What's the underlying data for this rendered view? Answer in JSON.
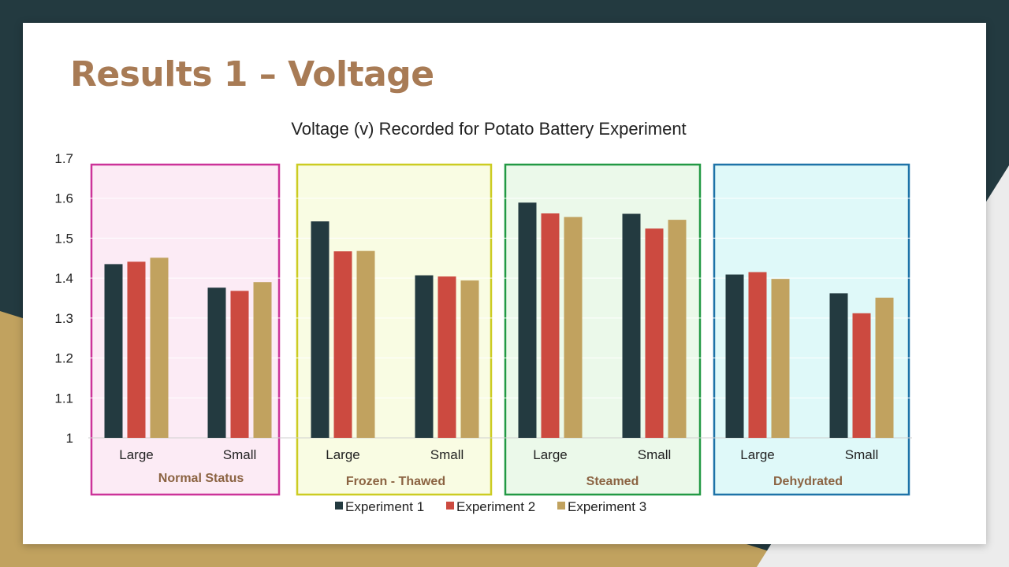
{
  "slide": {
    "title": "Results 1 – Voltage"
  },
  "colors": {
    "background_dark": "#233a40",
    "background_gold": "#c1a25f",
    "background_light": "#ececec",
    "slide": "#ffffff",
    "title": "#a87b55",
    "group_label": "#8b6342"
  },
  "chart_data": {
    "type": "bar",
    "title": "Voltage (v) Recorded for Potato Battery Experiment",
    "xlabel": "",
    "ylabel": "",
    "ylim": [
      1,
      1.7
    ],
    "yticks": [
      1,
      1.1,
      1.2,
      1.3,
      1.4,
      1.5,
      1.6,
      1.7
    ],
    "ytick_labels": [
      "1",
      "1.1",
      "1.2",
      "1.3",
      "1.4",
      "1.5",
      "1.6",
      "1.7"
    ],
    "grid": true,
    "legend_position": "bottom",
    "groups": [
      {
        "label": "Normal Status",
        "border": "#cc3399",
        "fill": "#fcebf5"
      },
      {
        "label": "Frozen - Thawed",
        "border": "#cccc22",
        "fill": "#f9fce3"
      },
      {
        "label": "Steamed",
        "border": "#229944",
        "fill": "#ebf9ea"
      },
      {
        "label": "Dehydrated",
        "border": "#1e73a8",
        "fill": "#dff9f9"
      }
    ],
    "categories": [
      "Large",
      "Small",
      "Large",
      "Small",
      "Large",
      "Small",
      "Large",
      "Small"
    ],
    "series": [
      {
        "name": "Experiment 1",
        "color": "#233a40",
        "values": [
          1.435,
          1.376,
          1.542,
          1.407,
          1.589,
          1.561,
          1.409,
          1.362
        ]
      },
      {
        "name": "Experiment 2",
        "color": "#cc4a40",
        "values": [
          1.441,
          1.368,
          1.467,
          1.404,
          1.562,
          1.524,
          1.415,
          1.312
        ]
      },
      {
        "name": "Experiment 3",
        "color": "#c1a25f",
        "values": [
          1.451,
          1.39,
          1.468,
          1.394,
          1.553,
          1.546,
          1.398,
          1.351
        ]
      }
    ]
  }
}
